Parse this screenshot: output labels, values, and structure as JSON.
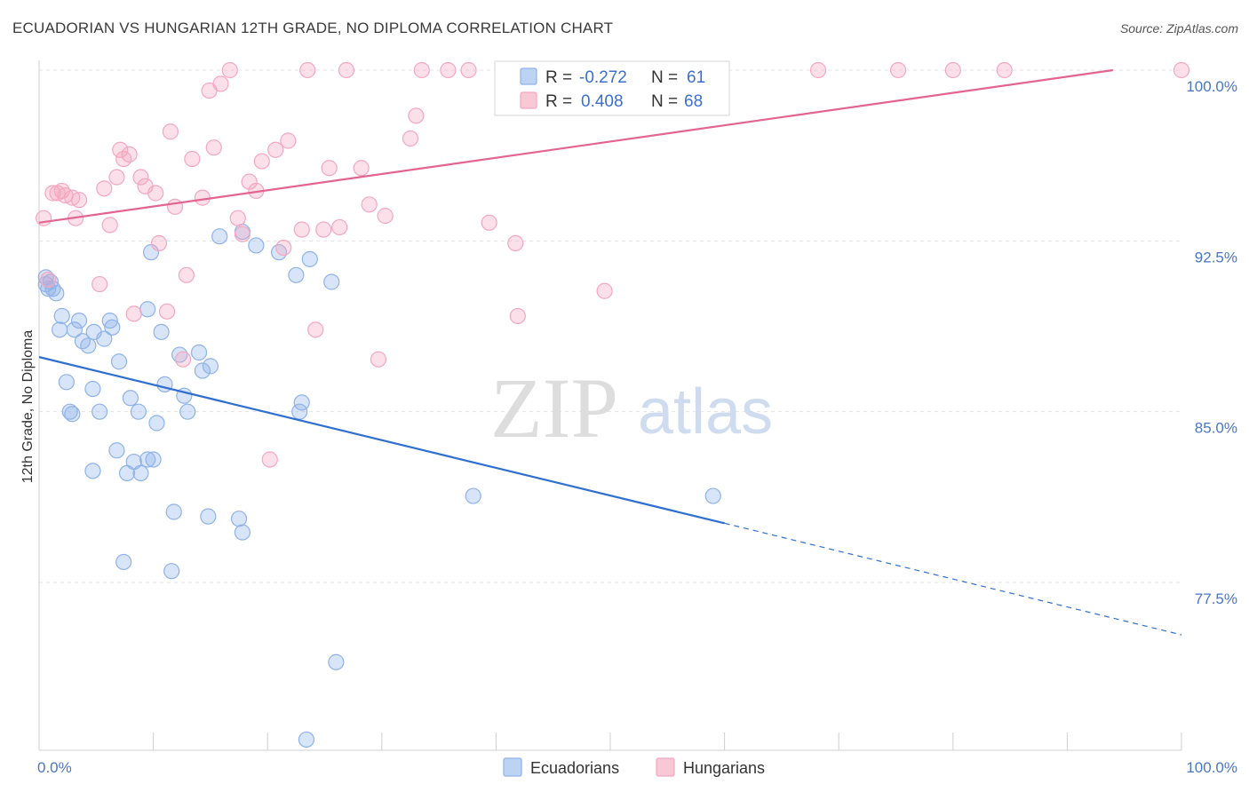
{
  "header": {
    "title": "ECUADORIAN VS HUNGARIAN 12TH GRADE, NO DIPLOMA CORRELATION CHART",
    "source": "Source: ZipAtlas.com"
  },
  "watermark": {
    "zip": "ZIP",
    "atlas": "atlas"
  },
  "chart_data": {
    "type": "scatter",
    "title": "ECUADORIAN VS HUNGARIAN 12TH GRADE, NO DIPLOMA CORRELATION CHART",
    "xlabel": "",
    "ylabel": "12th Grade, No Diploma",
    "xlim": [
      0,
      100
    ],
    "ylim": [
      70.0,
      101.5
    ],
    "x_tick_labels": [
      "0.0%",
      "100.0%"
    ],
    "y_ticks": [
      77.5,
      85.0,
      92.5,
      100.0
    ],
    "y_tick_labels": [
      "77.5%",
      "85.0%",
      "92.5%",
      "100.0%"
    ],
    "grid": true,
    "legend_position": "top-center",
    "colors": {
      "ecuadorians": "#8fb3e8",
      "hungarians": "#f4a7bf",
      "eco_line": "#2f6fd0",
      "hun_line": "#e2648f"
    },
    "legend": {
      "r_label": "R =",
      "n_label": "N =",
      "rows": [
        {
          "r": "-0.272",
          "n": "61"
        },
        {
          "r": "0.408",
          "n": "68"
        }
      ]
    },
    "series": [
      {
        "name": "Ecuadorians",
        "r": -0.272,
        "n": 61,
        "trend": {
          "x0": 0,
          "y0": 87.4,
          "x1": 60,
          "y1": 80.1,
          "dash_x1": 100,
          "dash_y1": 75.2
        },
        "points": [
          [
            0.6,
            90.9
          ],
          [
            0.6,
            90.6
          ],
          [
            1.2,
            90.4
          ],
          [
            1.5,
            90.2
          ],
          [
            1.8,
            88.6
          ],
          [
            2.0,
            89.2
          ],
          [
            2.4,
            86.3
          ],
          [
            2.7,
            85.0
          ],
          [
            2.9,
            84.9
          ],
          [
            3.1,
            88.6
          ],
          [
            3.5,
            89.0
          ],
          [
            3.8,
            88.1
          ],
          [
            4.3,
            87.9
          ],
          [
            4.8,
            88.5
          ],
          [
            4.7,
            86.0
          ],
          [
            5.3,
            85.0
          ],
          [
            5.7,
            88.2
          ],
          [
            6.4,
            88.7
          ],
          [
            6.2,
            89.0
          ],
          [
            7.0,
            87.2
          ],
          [
            8.0,
            85.6
          ],
          [
            8.7,
            85.0
          ],
          [
            9.5,
            89.5
          ],
          [
            9.8,
            92.0
          ],
          [
            10.3,
            84.5
          ],
          [
            10.7,
            88.5
          ],
          [
            11.0,
            86.2
          ],
          [
            12.3,
            87.5
          ],
          [
            12.7,
            85.7
          ],
          [
            13.0,
            85.0
          ],
          [
            14.0,
            87.6
          ],
          [
            14.3,
            86.8
          ],
          [
            15.0,
            87.0
          ],
          [
            15.8,
            92.7
          ],
          [
            17.8,
            92.9
          ],
          [
            19.0,
            92.3
          ],
          [
            21.0,
            92.0
          ],
          [
            22.5,
            91.0
          ],
          [
            22.8,
            85.0
          ],
          [
            23.0,
            85.4
          ],
          [
            23.7,
            91.7
          ],
          [
            25.6,
            90.7
          ],
          [
            4.7,
            82.4
          ],
          [
            6.8,
            83.3
          ],
          [
            7.7,
            82.3
          ],
          [
            8.3,
            82.8
          ],
          [
            8.9,
            82.3
          ],
          [
            9.5,
            82.9
          ],
          [
            10.0,
            82.9
          ],
          [
            11.8,
            80.6
          ],
          [
            14.8,
            80.4
          ],
          [
            17.5,
            80.3
          ],
          [
            17.8,
            79.7
          ],
          [
            7.4,
            78.4
          ],
          [
            11.6,
            78.0
          ],
          [
            26.0,
            74.0
          ],
          [
            23.4,
            70.6
          ],
          [
            38.0,
            81.3
          ],
          [
            59.0,
            81.3
          ],
          [
            0.8,
            90.4
          ],
          [
            1.0,
            90.7
          ]
        ]
      },
      {
        "name": "Hungarians",
        "r": 0.408,
        "n": 68,
        "trend": {
          "x0": 0,
          "y0": 93.3,
          "x1": 94,
          "y1": 100.0
        },
        "points": [
          [
            0.4,
            93.5
          ],
          [
            0.8,
            90.8
          ],
          [
            1.2,
            94.6
          ],
          [
            1.6,
            94.6
          ],
          [
            2.0,
            94.7
          ],
          [
            2.3,
            94.5
          ],
          [
            2.9,
            94.4
          ],
          [
            3.2,
            93.5
          ],
          [
            3.5,
            94.3
          ],
          [
            5.3,
            90.6
          ],
          [
            5.7,
            94.8
          ],
          [
            6.2,
            93.2
          ],
          [
            6.8,
            95.3
          ],
          [
            7.1,
            96.5
          ],
          [
            7.4,
            96.1
          ],
          [
            7.9,
            96.3
          ],
          [
            8.3,
            89.3
          ],
          [
            8.9,
            95.3
          ],
          [
            9.3,
            94.9
          ],
          [
            10.2,
            94.6
          ],
          [
            10.5,
            92.4
          ],
          [
            11.2,
            89.4
          ],
          [
            11.5,
            97.3
          ],
          [
            11.9,
            94.0
          ],
          [
            12.6,
            87.3
          ],
          [
            12.9,
            91.0
          ],
          [
            13.4,
            96.1
          ],
          [
            14.3,
            94.4
          ],
          [
            14.9,
            99.1
          ],
          [
            15.3,
            96.6
          ],
          [
            15.9,
            99.4
          ],
          [
            16.7,
            100.0
          ],
          [
            17.4,
            93.5
          ],
          [
            17.8,
            92.8
          ],
          [
            18.4,
            95.1
          ],
          [
            19.0,
            94.7
          ],
          [
            19.5,
            96.0
          ],
          [
            20.2,
            82.9
          ],
          [
            20.7,
            96.5
          ],
          [
            21.4,
            92.2
          ],
          [
            21.8,
            96.9
          ],
          [
            23.0,
            93.0
          ],
          [
            23.5,
            100.0
          ],
          [
            24.2,
            88.6
          ],
          [
            24.9,
            93.0
          ],
          [
            25.4,
            95.7
          ],
          [
            26.3,
            93.1
          ],
          [
            26.9,
            100.0
          ],
          [
            28.2,
            95.7
          ],
          [
            28.9,
            94.1
          ],
          [
            29.7,
            87.3
          ],
          [
            30.3,
            93.6
          ],
          [
            32.5,
            97.0
          ],
          [
            33.0,
            98.0
          ],
          [
            33.5,
            100.0
          ],
          [
            35.8,
            100.0
          ],
          [
            37.6,
            100.0
          ],
          [
            39.4,
            93.3
          ],
          [
            40.7,
            100.0
          ],
          [
            41.7,
            92.4
          ],
          [
            41.9,
            89.2
          ],
          [
            49.5,
            90.3
          ],
          [
            53.3,
            100.0
          ],
          [
            68.2,
            100.0
          ],
          [
            75.2,
            100.0
          ],
          [
            80.0,
            100.0
          ],
          [
            84.5,
            100.0
          ],
          [
            100.0,
            100.0
          ]
        ]
      }
    ]
  }
}
